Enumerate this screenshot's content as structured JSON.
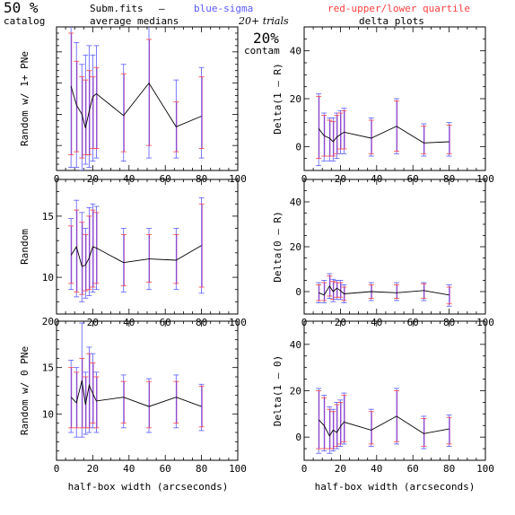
{
  "header": {
    "catalog_pct": "50 %",
    "catalog_label": "catalog",
    "file_label": "Subm.fits",
    "dash": "–",
    "blue_label": "blue-sigma",
    "red_label": "red-upper/lower quartile",
    "avg_label": "average medians",
    "trials_label": "20+ trials",
    "delta_label": "delta plots",
    "contam_pct": "20%",
    "contam_label": "contam"
  },
  "colors": {
    "blue": "#5a5aff",
    "red": "#ff4040",
    "median": "#000000",
    "purple": "#b040b0"
  },
  "x_label": "half-box width (arcseconds)",
  "chart_data": [
    {
      "type": "line",
      "panel": "top-left",
      "ylabel": "Random w/ 1+ PNe",
      "xlim": [
        0,
        100
      ],
      "ylim": [
        6,
        29
      ],
      "yticks": [],
      "xticks": [
        "0",
        "20",
        "40",
        "60",
        "80",
        "100"
      ],
      "x": [
        8,
        11,
        14,
        16,
        18,
        20,
        22,
        37,
        51,
        66,
        80
      ],
      "median": [
        19.5,
        16.5,
        15.0,
        12.8,
        15.5,
        17.8,
        18.3,
        14.8,
        20.0,
        13.0,
        14.7
      ],
      "sigma": [
        [
          6.5,
          33.0
        ],
        [
          6.5,
          26.5
        ],
        [
          6.0,
          23.0
        ],
        [
          7.0,
          24.5
        ],
        [
          6.5,
          26.0
        ],
        [
          7.5,
          24.5
        ],
        [
          8.0,
          26.0
        ],
        [
          7.5,
          23.0
        ],
        [
          8.0,
          32.0
        ],
        [
          8.0,
          20.5
        ],
        [
          8.0,
          22.5
        ]
      ],
      "quartile": [
        [
          8.5,
          28.0
        ],
        [
          9.0,
          23.5
        ],
        [
          8.0,
          21.0
        ],
        [
          8.5,
          20.5
        ],
        [
          8.5,
          22.0
        ],
        [
          9.5,
          21.0
        ],
        [
          9.5,
          22.5
        ],
        [
          9.0,
          21.5
        ],
        [
          10.0,
          27.0
        ],
        [
          9.0,
          17.0
        ],
        [
          9.5,
          21.0
        ]
      ]
    },
    {
      "type": "line",
      "panel": "top-right",
      "ylabel": "Delta(1 – R)",
      "xlim": [
        0,
        100
      ],
      "ylim": [
        -10,
        50
      ],
      "yticks": [
        "0",
        "20",
        "40"
      ],
      "xticks": [
        "0",
        "20",
        "40",
        "60",
        "80",
        "100"
      ],
      "x": [
        8,
        11,
        14,
        16,
        18,
        20,
        22,
        37,
        51,
        66,
        80
      ],
      "median": [
        7.5,
        4.5,
        3.5,
        2.0,
        4.0,
        5.0,
        6.0,
        3.5,
        8.5,
        1.5,
        2.0
      ],
      "sigma": [
        [
          -8.0,
          22.0
        ],
        [
          -6.0,
          14.0
        ],
        [
          -6.0,
          12.0
        ],
        [
          -6.0,
          12.0
        ],
        [
          -5.0,
          14.0
        ],
        [
          -3.0,
          15.0
        ],
        [
          -3.0,
          16.0
        ],
        [
          -4.0,
          12.0
        ],
        [
          -3.0,
          20.0
        ],
        [
          -4.0,
          9.5
        ],
        [
          -4.0,
          10.0
        ]
      ],
      "quartile": [
        [
          -5.0,
          21.0
        ],
        [
          -4.0,
          13.0
        ],
        [
          -4.0,
          11.0
        ],
        [
          -4.0,
          10.5
        ],
        [
          -3.0,
          13.0
        ],
        [
          -1.0,
          14.0
        ],
        [
          -1.0,
          15.0
        ],
        [
          -3.0,
          11.0
        ],
        [
          -2.0,
          19.0
        ],
        [
          -3.0,
          8.5
        ],
        [
          -3.0,
          9.0
        ]
      ]
    },
    {
      "type": "line",
      "panel": "middle-left",
      "ylabel": "Random",
      "xlim": [
        0,
        100
      ],
      "ylim": [
        7,
        18
      ],
      "yticks": [
        "10",
        "15"
      ],
      "xticks": [
        "0",
        "20",
        "40",
        "60",
        "80",
        "100"
      ],
      "x": [
        8,
        11,
        14,
        16,
        18,
        20,
        22,
        37,
        51,
        66,
        80
      ],
      "median": [
        11.8,
        12.5,
        10.9,
        11.0,
        11.6,
        12.5,
        12.4,
        11.2,
        11.5,
        11.4,
        12.6
      ],
      "sigma": [
        [
          9.0,
          14.8
        ],
        [
          8.4,
          16.3
        ],
        [
          8.0,
          15.3
        ],
        [
          8.3,
          14.0
        ],
        [
          8.5,
          15.7
        ],
        [
          8.8,
          16.0
        ],
        [
          9.0,
          15.8
        ],
        [
          8.8,
          14.0
        ],
        [
          9.0,
          14.0
        ],
        [
          9.0,
          14.0
        ],
        [
          8.7,
          16.5
        ]
      ],
      "quartile": [
        [
          9.5,
          14.2
        ],
        [
          8.8,
          15.5
        ],
        [
          8.6,
          14.5
        ],
        [
          8.9,
          13.5
        ],
        [
          9.0,
          15.0
        ],
        [
          9.2,
          15.5
        ],
        [
          9.5,
          15.3
        ],
        [
          9.3,
          13.5
        ],
        [
          9.6,
          13.5
        ],
        [
          9.5,
          13.5
        ],
        [
          9.2,
          16.0
        ]
      ]
    },
    {
      "type": "line",
      "panel": "middle-right",
      "ylabel": "Delta(0 – R)",
      "xlim": [
        0,
        100
      ],
      "ylim": [
        -10,
        50
      ],
      "yticks": [
        "0",
        "20",
        "40"
      ],
      "xticks": [
        "0",
        "20",
        "40",
        "60",
        "80",
        "100"
      ],
      "x": [
        8,
        11,
        14,
        16,
        18,
        20,
        22,
        37,
        51,
        66,
        80
      ],
      "median": [
        -0.5,
        -1.5,
        2.5,
        0.0,
        1.5,
        0.5,
        -1.0,
        0.0,
        -0.5,
        0.5,
        -1.5
      ],
      "sigma": [
        [
          -5.0,
          4.0
        ],
        [
          -5.0,
          5.0
        ],
        [
          -3.0,
          8.0
        ],
        [
          -4.5,
          5.5
        ],
        [
          -3.5,
          5.0
        ],
        [
          -3.5,
          5.0
        ],
        [
          -5.0,
          3.0
        ],
        [
          -4.0,
          4.0
        ],
        [
          -4.0,
          4.0
        ],
        [
          -4.0,
          4.0
        ],
        [
          -6.5,
          3.0
        ]
      ],
      "quartile": [
        [
          -4.0,
          3.0
        ],
        [
          -4.0,
          4.0
        ],
        [
          -2.0,
          7.0
        ],
        [
          -3.5,
          4.5
        ],
        [
          -2.5,
          4.0
        ],
        [
          -2.5,
          4.0
        ],
        [
          -4.0,
          2.0
        ],
        [
          -3.0,
          3.0
        ],
        [
          -3.0,
          3.0
        ],
        [
          -3.0,
          3.5
        ],
        [
          -5.5,
          2.0
        ]
      ]
    },
    {
      "type": "line",
      "panel": "bottom-left",
      "ylabel": "Random w/ 0 PNe",
      "xlim": [
        0,
        100
      ],
      "ylim": [
        5,
        20
      ],
      "yticks": [
        "10",
        "15",
        "20"
      ],
      "xticks": [
        "0",
        "20",
        "40",
        "60",
        "80",
        "100"
      ],
      "x": [
        8,
        11,
        14,
        16,
        18,
        20,
        22,
        37,
        51,
        66,
        80
      ],
      "median": [
        11.8,
        11.2,
        13.6,
        11.0,
        13.1,
        12.2,
        11.4,
        11.8,
        10.8,
        11.8,
        10.8
      ],
      "sigma": [
        [
          8.0,
          15.8
        ],
        [
          7.5,
          15.0
        ],
        [
          7.5,
          19.8
        ],
        [
          7.8,
          14.5
        ],
        [
          8.0,
          17.2
        ],
        [
          8.5,
          16.5
        ],
        [
          8.0,
          14.5
        ],
        [
          8.5,
          14.2
        ],
        [
          8.0,
          13.8
        ],
        [
          8.5,
          14.2
        ],
        [
          8.2,
          13.2
        ]
      ],
      "quartile": [
        [
          8.5,
          15.0
        ],
        [
          8.5,
          14.5
        ],
        [
          8.5,
          16.0
        ],
        [
          8.5,
          14.0
        ],
        [
          8.5,
          16.5
        ],
        [
          9.0,
          15.5
        ],
        [
          8.5,
          14.0
        ],
        [
          9.0,
          13.5
        ],
        [
          8.5,
          13.5
        ],
        [
          9.0,
          13.5
        ],
        [
          8.6,
          13.0
        ]
      ]
    },
    {
      "type": "line",
      "panel": "bottom-right",
      "ylabel": "Delta(1 – 0)",
      "xlim": [
        0,
        100
      ],
      "ylim": [
        -10,
        50
      ],
      "yticks": [
        "0",
        "20",
        "40"
      ],
      "xticks": [
        "0",
        "20",
        "40",
        "60",
        "80",
        "100"
      ],
      "x": [
        8,
        11,
        14,
        16,
        18,
        20,
        22,
        37,
        51,
        66,
        80
      ],
      "median": [
        7.5,
        5.0,
        0.5,
        3.0,
        2.0,
        4.5,
        6.5,
        3.0,
        9.0,
        1.5,
        3.5
      ],
      "sigma": [
        [
          -7.0,
          21.0
        ],
        [
          -6.0,
          18.0
        ],
        [
          -7.0,
          13.0
        ],
        [
          -6.0,
          12.0
        ],
        [
          -5.0,
          15.0
        ],
        [
          -4.0,
          16.0
        ],
        [
          -3.0,
          19.0
        ],
        [
          -4.0,
          12.0
        ],
        [
          -3.0,
          21.0
        ],
        [
          -5.0,
          9.0
        ],
        [
          -4.0,
          9.5
        ]
      ],
      "quartile": [
        [
          -5.0,
          20.0
        ],
        [
          -5.0,
          17.0
        ],
        [
          -5.0,
          12.0
        ],
        [
          -5.0,
          11.0
        ],
        [
          -4.0,
          14.0
        ],
        [
          -3.0,
          15.0
        ],
        [
          -2.0,
          18.0
        ],
        [
          -3.0,
          11.0
        ],
        [
          -2.0,
          20.0
        ],
        [
          -4.0,
          8.0
        ],
        [
          -3.0,
          8.5
        ]
      ]
    }
  ]
}
